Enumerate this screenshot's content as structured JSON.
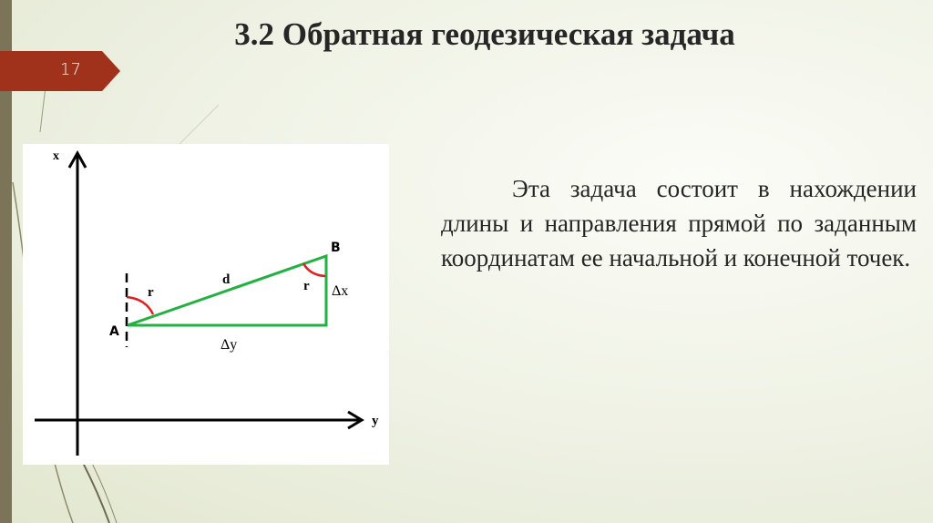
{
  "slide": {
    "title": "3.2 Обратная геодезическая задача",
    "page_number": "17",
    "body": "Эта задача состоит в нахождении длины и направления прямой по заданным координатам ее начальной и конечной точек.",
    "accent_color": "#a0321b",
    "line_color": "#22b140"
  },
  "diagram": {
    "axis_x": "x",
    "axis_y": "y",
    "point_a": "A",
    "point_b": "B",
    "side_d": "d",
    "angle_a": "r",
    "angle_b": "r",
    "delta_x": "Δx",
    "delta_y": "Δy"
  }
}
